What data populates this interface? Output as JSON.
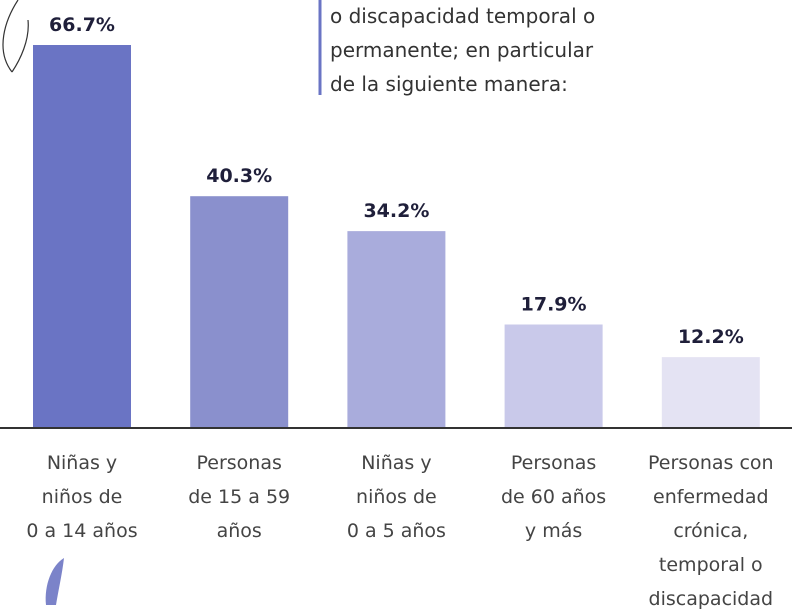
{
  "note_lines": [
    "o discapacidad temporal o",
    "permanente; en particular",
    "de la siguiente manera:"
  ],
  "chart_data": {
    "type": "bar",
    "categories": [
      "Niñas y\nniños de\n0 a 14 años",
      "Personas\nde 15 a 59\naños",
      "Niñas y\nniños de\n0 a 5 años",
      "Personas\nde 60 años\ny más",
      "Personas con\nenfermedad\ncrónica,\ntemporal o\ndiscapacidad"
    ],
    "values": [
      66.7,
      40.3,
      34.2,
      17.9,
      12.2
    ],
    "value_labels": [
      "66.7%",
      "40.3%",
      "34.2%",
      "17.9%",
      "12.2%"
    ],
    "colors": [
      "#6a74c4",
      "#8a90cd",
      "#a9acdc",
      "#c9c9ea",
      "#e4e3f3"
    ]
  }
}
